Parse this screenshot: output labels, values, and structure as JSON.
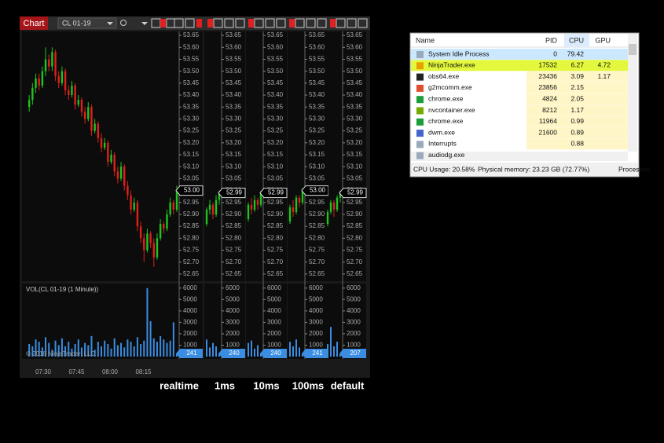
{
  "chart_window": {
    "tab": "Chart",
    "instrument": "CL 01-19",
    "volume_title": "VOL(CL 01-19 (1 Minute))",
    "copyright": "© 2018 NinjaTrader, LLC",
    "price_axis": {
      "ylim": [
        52.62,
        53.68
      ],
      "yticks": [
        {
          "value": 53.65,
          "label": "53.65"
        },
        {
          "value": 53.6,
          "label": "53.60"
        },
        {
          "value": 53.55,
          "label": "53.55"
        },
        {
          "value": 53.5,
          "label": "53.50"
        },
        {
          "value": 53.45,
          "label": "53.45"
        },
        {
          "value": 53.4,
          "label": "53.40"
        },
        {
          "value": 53.35,
          "label": "53.35"
        },
        {
          "value": 53.3,
          "label": "53.30"
        },
        {
          "value": 53.25,
          "label": "53.25"
        },
        {
          "value": 53.2,
          "label": "53.20"
        },
        {
          "value": 53.15,
          "label": "53.15"
        },
        {
          "value": 53.1,
          "label": "53.10"
        },
        {
          "value": 53.05,
          "label": "53.05"
        },
        {
          "value": 53.0,
          "label": "53.00"
        },
        {
          "value": 52.95,
          "label": "52.95"
        },
        {
          "value": 52.9,
          "label": "52.90"
        },
        {
          "value": 52.85,
          "label": "52.85"
        },
        {
          "value": 52.8,
          "label": "52.80"
        },
        {
          "value": 52.75,
          "label": "52.75"
        },
        {
          "value": 52.7,
          "label": "52.70"
        },
        {
          "value": 52.65,
          "label": "52.65"
        }
      ]
    },
    "volume_axis": {
      "ylim": [
        0,
        6400
      ],
      "yticks": [
        1000,
        2000,
        3000,
        4000,
        5000,
        6000
      ]
    },
    "time_labels": [
      "07:30",
      "07:45",
      "08:00",
      "08:15"
    ],
    "panels": [
      {
        "label": "realtime",
        "last_price": {
          "value": 53.0,
          "label": "53.00"
        },
        "last_volume": 241,
        "candles": [
          [
            53.35,
            53.4,
            53.33,
            53.38
          ],
          [
            53.38,
            53.45,
            53.36,
            53.43
          ],
          [
            53.43,
            53.49,
            53.41,
            53.47
          ],
          [
            53.47,
            53.49,
            53.42,
            53.44
          ],
          [
            53.44,
            53.52,
            53.43,
            53.5
          ],
          [
            53.5,
            53.6,
            53.48,
            53.55
          ],
          [
            53.55,
            53.57,
            53.5,
            53.52
          ],
          [
            53.52,
            53.6,
            53.5,
            53.58
          ],
          [
            53.58,
            53.59,
            53.46,
            53.48
          ],
          [
            53.48,
            53.5,
            53.43,
            53.45
          ],
          [
            53.45,
            53.52,
            53.44,
            53.5
          ],
          [
            53.5,
            53.51,
            53.4,
            53.42
          ],
          [
            53.42,
            53.44,
            53.38,
            53.4
          ],
          [
            53.4,
            53.46,
            53.39,
            53.44
          ],
          [
            53.44,
            53.45,
            53.34,
            53.36
          ],
          [
            53.36,
            53.4,
            53.35,
            53.38
          ],
          [
            53.38,
            53.39,
            53.31,
            53.33
          ],
          [
            53.33,
            53.35,
            53.28,
            53.3
          ],
          [
            53.3,
            53.37,
            53.29,
            53.35
          ],
          [
            53.35,
            53.36,
            53.23,
            53.25
          ],
          [
            53.25,
            53.3,
            53.24,
            53.28
          ],
          [
            53.28,
            53.29,
            53.2,
            53.22
          ],
          [
            53.22,
            53.24,
            53.16,
            53.18
          ],
          [
            53.18,
            53.22,
            53.17,
            53.2
          ],
          [
            53.2,
            53.21,
            53.1,
            53.12
          ],
          [
            53.12,
            53.17,
            53.11,
            53.15
          ],
          [
            53.15,
            53.16,
            53.06,
            53.08
          ],
          [
            53.08,
            53.1,
            53.03,
            53.05
          ],
          [
            53.05,
            53.12,
            53.04,
            53.1
          ],
          [
            53.1,
            53.11,
            53.0,
            53.02
          ],
          [
            53.02,
            53.04,
            52.96,
            52.98
          ],
          [
            52.98,
            53.0,
            52.9,
            52.92
          ],
          [
            52.92,
            52.97,
            52.91,
            52.95
          ],
          [
            52.95,
            52.96,
            52.83,
            52.85
          ],
          [
            52.85,
            52.87,
            52.78,
            52.8
          ],
          [
            52.8,
            52.82,
            52.7,
            52.75
          ],
          [
            52.75,
            52.84,
            52.74,
            52.82
          ],
          [
            52.82,
            52.83,
            52.76,
            52.78
          ],
          [
            52.78,
            52.8,
            52.68,
            52.72
          ],
          [
            52.72,
            52.82,
            52.71,
            52.8
          ],
          [
            52.8,
            52.88,
            52.79,
            52.86
          ],
          [
            52.86,
            52.87,
            52.82,
            52.84
          ],
          [
            52.84,
            52.92,
            52.83,
            52.9
          ],
          [
            52.9,
            52.97,
            52.89,
            52.95
          ],
          [
            52.95,
            52.96,
            52.9,
            52.92
          ],
          [
            52.92,
            53.02,
            52.91,
            53.0
          ]
        ],
        "volumes": [
          1100,
          900,
          1500,
          1300,
          800,
          1700,
          1200,
          600,
          1400,
          1000,
          1600,
          900,
          1300,
          700,
          1100,
          1500,
          800,
          1200,
          1000,
          1800,
          600,
          1300,
          900,
          1400,
          1100,
          700,
          1600,
          1000,
          1200,
          800,
          1500,
          1300,
          900,
          1700,
          1100,
          1400,
          6000,
          3100,
          1600,
          1300,
          1800,
          1500,
          1200,
          1400,
          3000,
          241
        ]
      },
      {
        "label": "1ms",
        "last_price": {
          "value": 52.99,
          "label": "52.99"
        },
        "last_volume": 240,
        "candles": [
          [
            52.86,
            52.93,
            52.85,
            52.92
          ],
          [
            52.92,
            52.96,
            52.9,
            52.94
          ],
          [
            52.94,
            52.95,
            52.88,
            52.9
          ],
          [
            52.9,
            52.98,
            52.89,
            52.96
          ],
          [
            52.96,
            53.0,
            52.94,
            52.99
          ]
        ],
        "volumes": [
          1500,
          800,
          1200,
          900,
          240
        ]
      },
      {
        "label": "10ms",
        "last_price": {
          "value": 52.99,
          "label": "52.99"
        },
        "last_volume": 240,
        "candles": [
          [
            52.88,
            52.95,
            52.87,
            52.94
          ],
          [
            52.94,
            52.97,
            52.9,
            52.92
          ],
          [
            52.92,
            52.98,
            52.91,
            52.96
          ],
          [
            52.96,
            52.97,
            52.92,
            52.94
          ],
          [
            52.94,
            53.0,
            52.93,
            52.99
          ]
        ],
        "volumes": [
          1200,
          1400,
          700,
          1000,
          240
        ]
      },
      {
        "label": "100ms",
        "last_price": {
          "value": 53.0,
          "label": "53.00"
        },
        "last_volume": 241,
        "candles": [
          [
            52.87,
            52.94,
            52.86,
            52.93
          ],
          [
            52.93,
            52.96,
            52.89,
            52.91
          ],
          [
            52.91,
            52.98,
            52.9,
            52.97
          ],
          [
            52.97,
            52.98,
            52.93,
            52.95
          ],
          [
            52.95,
            53.01,
            52.94,
            53.0
          ]
        ],
        "volumes": [
          1300,
          900,
          1500,
          800,
          241
        ]
      },
      {
        "label": "default",
        "last_price": {
          "value": 52.99,
          "label": "52.99"
        },
        "last_volume": 207,
        "candles": [
          [
            52.86,
            52.92,
            52.85,
            52.91
          ],
          [
            52.91,
            52.96,
            52.9,
            52.95
          ],
          [
            52.95,
            52.96,
            52.89,
            52.92
          ],
          [
            52.92,
            52.98,
            52.91,
            52.97
          ],
          [
            52.97,
            53.0,
            52.95,
            52.99
          ]
        ],
        "volumes": [
          1100,
          2600,
          900,
          1300,
          207
        ]
      }
    ]
  },
  "task_manager": {
    "columns": [
      "Name",
      "PID",
      "CPU",
      "GPU"
    ],
    "rows": [
      {
        "name": "System Idle Process",
        "pid": "0",
        "cpu": "79.42"
      },
      {
        "name": "NinjaTrader.exe",
        "pid": "17532",
        "cpu": "6.27",
        "gpu": "4.72"
      },
      {
        "name": "obs64.exe",
        "pid": "23436",
        "cpu": "3.09",
        "gpu": "1.17"
      },
      {
        "name": "g2mcomm.exe",
        "pid": "23856",
        "cpu": "2.15"
      },
      {
        "name": "chrome.exe",
        "pid": "4824",
        "cpu": "2.05"
      },
      {
        "name": "nvcontainer.exe",
        "pid": "8212",
        "cpu": "1.17"
      },
      {
        "name": "chrome.exe",
        "pid": "11964",
        "cpu": "0.99"
      },
      {
        "name": "dwm.exe",
        "pid": "21600",
        "cpu": "0.89"
      },
      {
        "name": "Interrupts",
        "cpu": "0.88"
      },
      {
        "name": "audiodg.exe"
      }
    ],
    "status": [
      "CPU Usage: 20.58%",
      "Physical memory: 23.23 GB (72.77%)",
      "Processes:"
    ]
  }
}
